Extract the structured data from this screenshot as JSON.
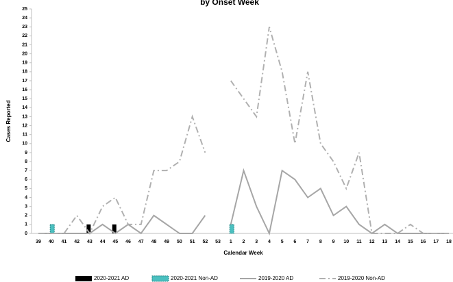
{
  "chart_data": {
    "type": "line",
    "title": "by Onset Week",
    "x_label": "Calendar Week",
    "y_label": "Cases Reported",
    "categories": [
      "39",
      "40",
      "41",
      "42",
      "43",
      "44",
      "45",
      "46",
      "47",
      "48",
      "49",
      "50",
      "51",
      "52",
      "53",
      "1",
      "2",
      "3",
      "4",
      "5",
      "6",
      "7",
      "8",
      "9",
      "10",
      "11",
      "12",
      "13",
      "14",
      "15",
      "16",
      "17",
      "18"
    ],
    "ylim": [
      0,
      25
    ],
    "yticks": [
      0,
      1,
      2,
      3,
      4,
      5,
      6,
      7,
      8,
      9,
      10,
      11,
      12,
      13,
      14,
      15,
      16,
      17,
      18,
      19,
      20,
      21,
      22,
      23,
      24,
      25
    ],
    "grid": false,
    "legend": "bottom",
    "series": [
      {
        "name": "2020-2021 AD",
        "type": "bar",
        "color": "#000000",
        "values": [
          0,
          0,
          0,
          0,
          1,
          0,
          1,
          0,
          0,
          0,
          0,
          0,
          0,
          0,
          0,
          0,
          null,
          null,
          null,
          null,
          null,
          null,
          null,
          null,
          null,
          null,
          null,
          null,
          null,
          null,
          null,
          null,
          null
        ]
      },
      {
        "name": "2020-2021 Non-AD",
        "type": "bar",
        "color": "#4bc0c0",
        "values": [
          0,
          1,
          0,
          0,
          0,
          0,
          0,
          0,
          0,
          0,
          0,
          0,
          0,
          0,
          0,
          1,
          null,
          null,
          null,
          null,
          null,
          null,
          null,
          null,
          null,
          null,
          null,
          null,
          null,
          null,
          null,
          null,
          null
        ]
      },
      {
        "name": "2019-2020 AD",
        "type": "line",
        "color": "#a6a6a6",
        "dash": "solid",
        "values": [
          0,
          0,
          0,
          0,
          0,
          1,
          0,
          1,
          0,
          2,
          1,
          0,
          0,
          2,
          null,
          1,
          7,
          3,
          0,
          7,
          6,
          4,
          5,
          2,
          3,
          1,
          0,
          1,
          0,
          0,
          0,
          0,
          0
        ]
      },
      {
        "name": "2019-2020 Non-AD",
        "type": "line",
        "color": "#b0b0b0",
        "dash": "dashdot",
        "values": [
          0,
          0,
          0,
          2,
          0,
          3,
          4,
          1,
          1,
          7,
          7,
          8,
          13,
          9,
          null,
          17,
          15,
          13,
          23,
          18,
          10,
          18,
          10,
          8,
          5,
          9,
          0,
          0,
          0,
          1,
          0,
          0,
          0
        ]
      }
    ]
  }
}
